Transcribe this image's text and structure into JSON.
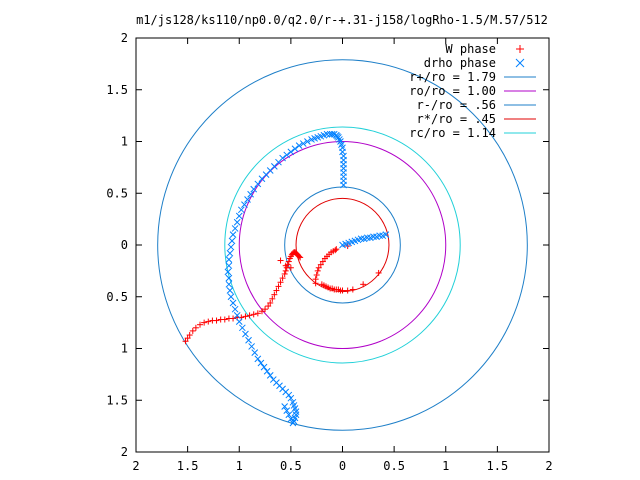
{
  "chart_data": {
    "type": "scatter",
    "title": "m1/js128/ks110/np0.0/q2.0/r-+.31-j158/logRho-1.5/M.57/512",
    "xlim": [
      -2,
      2
    ],
    "ylim": [
      -2,
      2
    ],
    "x_tick_labels": [
      "2",
      "1.5",
      "1",
      "0.5",
      "0",
      "0.5",
      "1",
      "1.5",
      "2"
    ],
    "x_tick_values": [
      -2,
      -1.5,
      -1,
      -0.5,
      0,
      0.5,
      1,
      1.5,
      2
    ],
    "y_tick_labels": [
      "2",
      "1.5",
      "1",
      "0.5",
      "0",
      "0.5",
      "1",
      "1.5",
      "2"
    ],
    "y_tick_values": [
      2,
      1.5,
      1,
      0.5,
      0,
      -0.5,
      -1,
      -1.5,
      -2
    ],
    "grid": false,
    "legend_position": "top-right",
    "legend": [
      {
        "label": "W phase",
        "kind": "points",
        "marker": "plus",
        "color": "#ff0000"
      },
      {
        "label": "drho phase",
        "kind": "points",
        "marker": "cross",
        "color": "#0080ff"
      },
      {
        "label": "r+/ro = 1.79",
        "kind": "circle",
        "radius": 1.79,
        "color": "#1e7fc8"
      },
      {
        "label": "ro/ro = 1.00",
        "kind": "circle",
        "radius": 1.0,
        "color": "#b000c8"
      },
      {
        "label": "r-/ro = .56",
        "kind": "circle",
        "radius": 0.56,
        "color": "#1e7fc8"
      },
      {
        "label": "r*/ro = .45",
        "kind": "circle",
        "radius": 0.45,
        "color": "#e00000"
      },
      {
        "label": "rc/ro = 1.14",
        "kind": "circle",
        "radius": 1.14,
        "color": "#20d0d8"
      }
    ],
    "series": [
      {
        "name": "W phase",
        "marker": "plus",
        "color": "#ff0000",
        "x": [
          -1.52,
          -1.5,
          -1.48,
          -1.45,
          -1.42,
          -1.38,
          -1.34,
          -1.3,
          -1.26,
          -1.22,
          -1.18,
          -1.14,
          -1.1,
          -1.06,
          -1.02,
          -0.98,
          -0.94,
          -0.9,
          -0.86,
          -0.82,
          -0.78,
          -0.75,
          -0.72,
          -0.7,
          -0.68,
          -0.66,
          -0.64,
          -0.62,
          -0.6,
          -0.58,
          -0.56,
          -0.55,
          -0.54,
          -0.53,
          -0.52,
          -0.51,
          -0.5,
          -0.49,
          -0.48,
          -0.47,
          -0.46,
          -0.45,
          -0.44,
          -0.43,
          -0.42,
          -0.41,
          -0.6,
          -0.55,
          -0.5,
          -0.26,
          -0.26,
          -0.25,
          -0.24,
          -0.23,
          -0.21,
          -0.19,
          -0.17,
          -0.15,
          -0.13,
          -0.11,
          -0.09,
          -0.07,
          -0.06,
          0.05,
          -0.2,
          -0.18,
          -0.16,
          -0.14,
          -0.12,
          -0.1,
          -0.08,
          -0.06,
          -0.04,
          -0.02,
          0.0,
          0.05,
          0.1,
          0.2,
          0.35
        ],
        "y": [
          -0.93,
          -0.9,
          -0.87,
          -0.83,
          -0.8,
          -0.77,
          -0.75,
          -0.74,
          -0.73,
          -0.73,
          -0.72,
          -0.72,
          -0.71,
          -0.71,
          -0.7,
          -0.7,
          -0.69,
          -0.68,
          -0.67,
          -0.66,
          -0.64,
          -0.62,
          -0.59,
          -0.56,
          -0.52,
          -0.48,
          -0.44,
          -0.4,
          -0.36,
          -0.32,
          -0.28,
          -0.25,
          -0.22,
          -0.19,
          -0.16,
          -0.13,
          -0.11,
          -0.09,
          -0.08,
          -0.07,
          -0.07,
          -0.08,
          -0.09,
          -0.1,
          -0.11,
          -0.12,
          -0.15,
          -0.2,
          -0.22,
          -0.37,
          -0.33,
          -0.29,
          -0.25,
          -0.22,
          -0.19,
          -0.16,
          -0.13,
          -0.11,
          -0.09,
          -0.07,
          -0.06,
          -0.05,
          -0.04,
          -0.01,
          -0.38,
          -0.39,
          -0.4,
          -0.41,
          -0.42,
          -0.42,
          -0.43,
          -0.43,
          -0.43,
          -0.44,
          -0.44,
          -0.44,
          -0.43,
          -0.38,
          -0.27
        ]
      },
      {
        "name": "drho phase",
        "marker": "cross",
        "color": "#0080ff",
        "x": [
          0.0,
          0.03,
          0.06,
          0.09,
          0.12,
          0.15,
          0.18,
          0.21,
          0.24,
          0.27,
          0.3,
          0.33,
          0.36,
          0.39,
          0.42,
          0.01,
          0.01,
          0.01,
          0.01,
          0.01,
          0.01,
          0.01,
          0.01,
          0.0,
          0.0,
          -0.01,
          -0.02,
          -0.03,
          -0.04,
          -0.05,
          -0.06,
          -0.08,
          -0.1,
          -0.12,
          -0.15,
          -0.18,
          -0.21,
          -0.24,
          -0.27,
          -0.3,
          -0.34,
          -0.38,
          -0.42,
          -0.46,
          -0.5,
          -0.54,
          -0.58,
          -0.62,
          -0.66,
          -0.7,
          -0.74,
          -0.78,
          -0.82,
          -0.86,
          -0.89,
          -0.92,
          -0.95,
          -0.98,
          -1.0,
          -1.02,
          -1.04,
          -1.06,
          -1.07,
          -1.08,
          -1.09,
          -1.1,
          -1.1,
          -1.11,
          -1.1,
          -1.1,
          -1.09,
          -1.08,
          -1.06,
          -1.04,
          -1.02,
          -1.0,
          -0.97,
          -0.94,
          -0.91,
          -0.88,
          -0.85,
          -0.82,
          -0.79,
          -0.76,
          -0.73,
          -0.7,
          -0.67,
          -0.64,
          -0.61,
          -0.58,
          -0.55,
          -0.52,
          -0.5,
          -0.48,
          -0.47,
          -0.46,
          -0.45,
          -0.45,
          -0.46,
          -0.47,
          -0.48,
          -0.5,
          -0.52,
          -0.54,
          -0.56
        ],
        "y": [
          0.0,
          0.01,
          0.02,
          0.03,
          0.04,
          0.05,
          0.06,
          0.06,
          0.07,
          0.07,
          0.08,
          0.08,
          0.09,
          0.09,
          0.1,
          0.58,
          0.62,
          0.66,
          0.7,
          0.74,
          0.78,
          0.82,
          0.86,
          0.9,
          0.94,
          0.97,
          1.0,
          1.02,
          1.04,
          1.05,
          1.06,
          1.07,
          1.07,
          1.07,
          1.07,
          1.06,
          1.05,
          1.04,
          1.03,
          1.02,
          1.0,
          0.98,
          0.96,
          0.93,
          0.9,
          0.87,
          0.84,
          0.8,
          0.76,
          0.72,
          0.68,
          0.64,
          0.59,
          0.54,
          0.49,
          0.44,
          0.39,
          0.34,
          0.28,
          0.22,
          0.16,
          0.1,
          0.04,
          -0.02,
          -0.08,
          -0.14,
          -0.2,
          -0.26,
          -0.32,
          -0.38,
          -0.44,
          -0.5,
          -0.56,
          -0.62,
          -0.68,
          -0.74,
          -0.8,
          -0.86,
          -0.92,
          -0.98,
          -1.04,
          -1.1,
          -1.14,
          -1.18,
          -1.22,
          -1.26,
          -1.3,
          -1.33,
          -1.36,
          -1.39,
          -1.42,
          -1.45,
          -1.48,
          -1.52,
          -1.55,
          -1.58,
          -1.61,
          -1.64,
          -1.67,
          -1.7,
          -1.72,
          -1.68,
          -1.64,
          -1.6,
          -1.56
        ]
      }
    ]
  }
}
